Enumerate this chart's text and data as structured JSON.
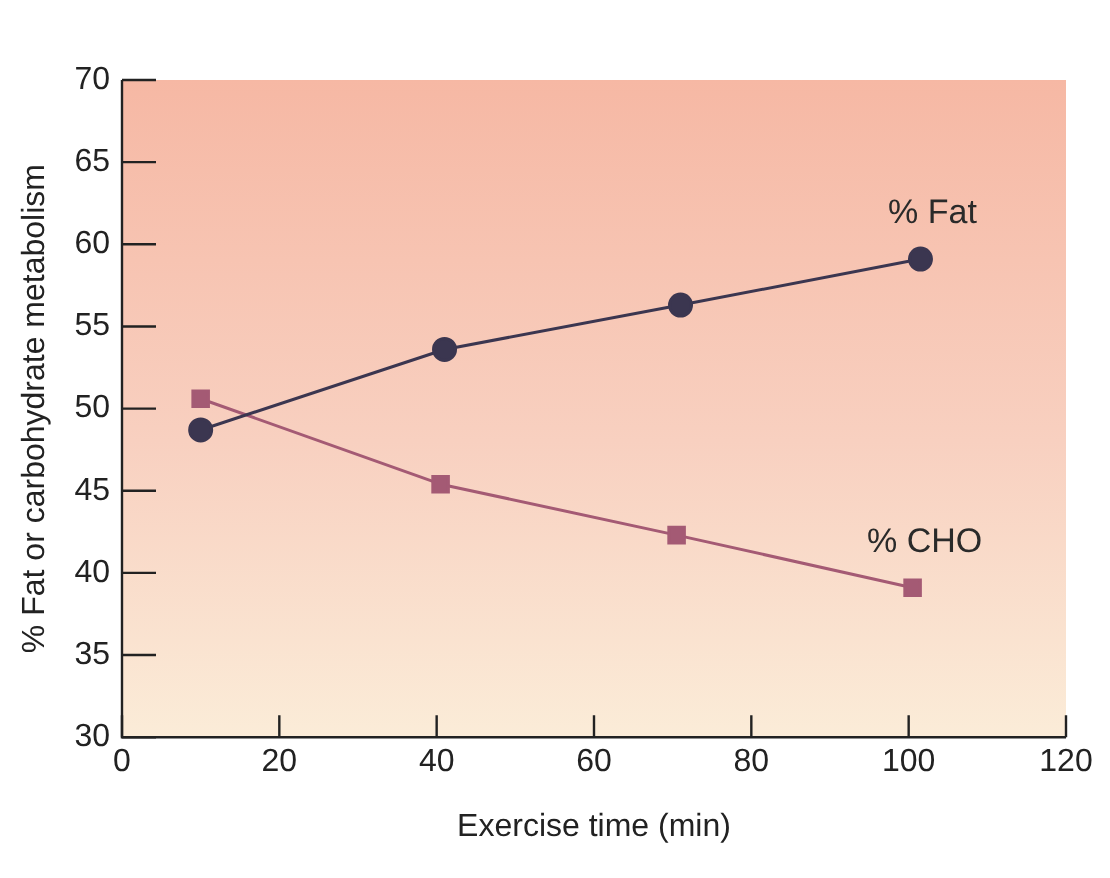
{
  "chart_data": {
    "type": "line",
    "xlabel": "Exercise time (min)",
    "ylabel": "% Fat or carbohydrate metabolism",
    "xlim": [
      0,
      120
    ],
    "xticks": [
      0,
      20,
      40,
      60,
      80,
      100,
      120
    ],
    "ylim": [
      30,
      70
    ],
    "yticks": [
      30,
      35,
      40,
      45,
      50,
      55,
      60,
      65,
      70
    ],
    "grid": false,
    "legend": false,
    "line_style": "solid",
    "series": [
      {
        "name": "% Fat",
        "color": "#3b3650",
        "marker": "circle",
        "x": [
          10,
          41,
          71,
          101.5
        ],
        "values": [
          48.7,
          53.6,
          56.3,
          59.1
        ]
      },
      {
        "name": "% CHO",
        "color": "#a45a74",
        "marker": "square",
        "x": [
          10,
          40.5,
          70.5,
          100.5
        ],
        "values": [
          50.6,
          45.4,
          42.3,
          39.1
        ]
      }
    ]
  }
}
